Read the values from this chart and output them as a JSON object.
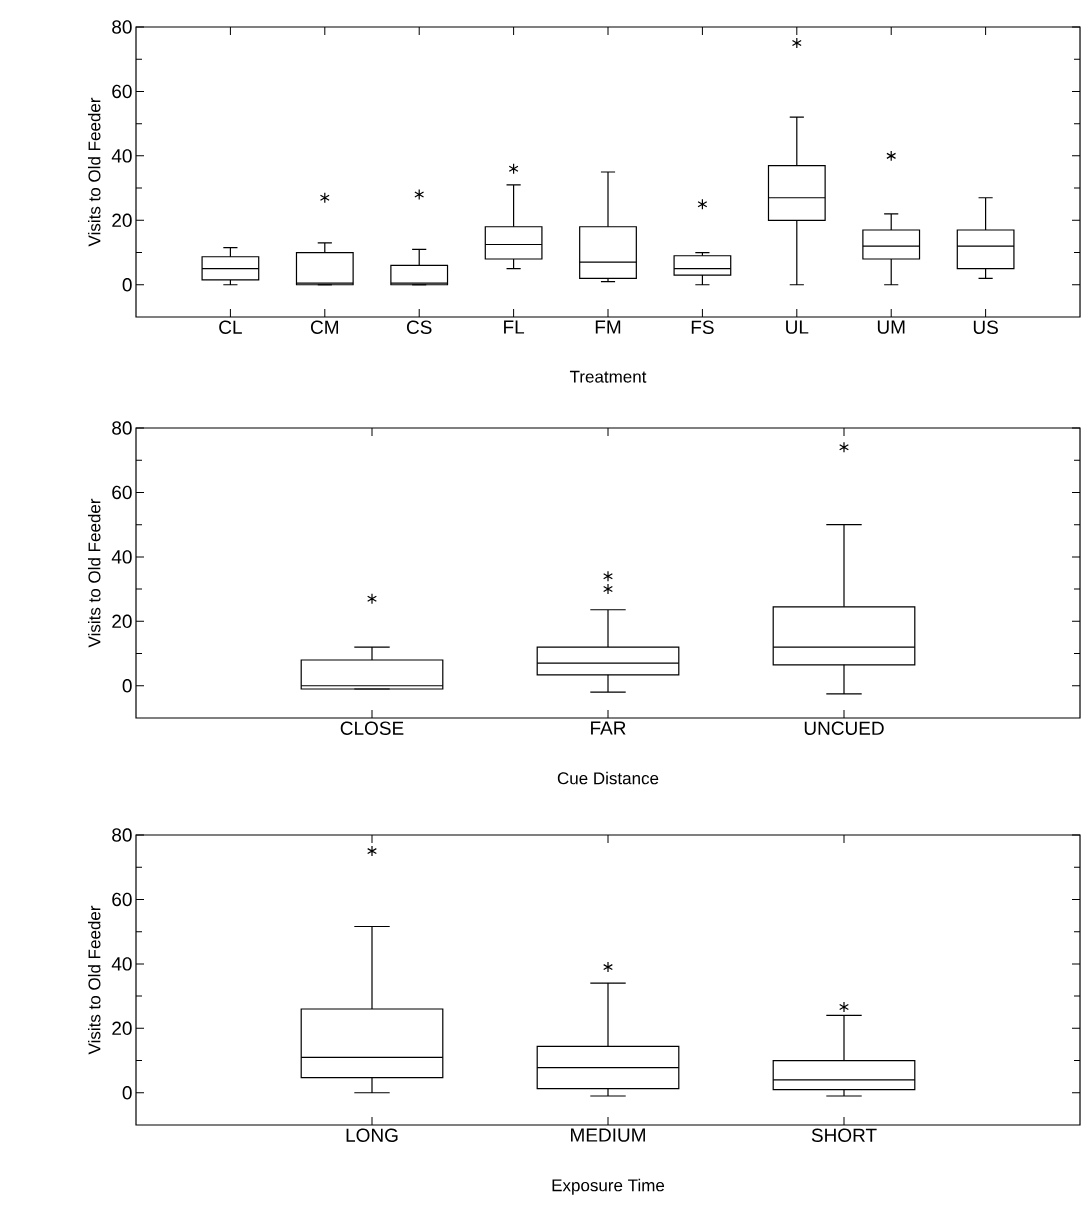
{
  "chart_data": [
    {
      "type": "box",
      "xlabel": "Treatment",
      "ylabel": "Visits to Old Feeder",
      "categories": [
        "CL",
        "CM",
        "CS",
        "FL",
        "FM",
        "FS",
        "UL",
        "UM",
        "US"
      ],
      "ylim": [
        -10,
        80
      ],
      "yticks": [
        0,
        20,
        40,
        60,
        80
      ],
      "marker": "star",
      "boxes": [
        {
          "low": 0,
          "q1": 1.5,
          "median": 5,
          "q3": 8.7,
          "high": 11.5
        },
        {
          "low": 0,
          "q1": 0,
          "median": 0.5,
          "q3": 10,
          "high": 13,
          "outliers": [
            27
          ]
        },
        {
          "low": 0,
          "q1": 0,
          "median": 0.5,
          "q3": 6,
          "high": 11,
          "outliers": [
            28
          ]
        },
        {
          "low": 5,
          "q1": 8,
          "median": 12.5,
          "q3": 18,
          "high": 31,
          "outliers": [
            36
          ]
        },
        {
          "low": 1,
          "q1": 2,
          "median": 7,
          "q3": 18,
          "high": 35
        },
        {
          "low": 0,
          "q1": 3,
          "median": 5,
          "q3": 9,
          "high": 10,
          "outliers": [
            25
          ]
        },
        {
          "low": 0,
          "q1": 20,
          "median": 27,
          "q3": 37,
          "high": 52,
          "outliers": [
            75
          ]
        },
        {
          "low": 0,
          "q1": 8,
          "median": 12,
          "q3": 17,
          "high": 22,
          "outliers": [
            40
          ]
        },
        {
          "low": 2,
          "q1": 5,
          "median": 12,
          "q3": 17,
          "high": 27
        }
      ]
    },
    {
      "type": "box",
      "xlabel": "Cue Distance",
      "ylabel": "Visits to Old Feeder",
      "categories": [
        "CLOSE",
        "FAR",
        "UNCUED"
      ],
      "ylim": [
        -10,
        80
      ],
      "yticks": [
        0,
        20,
        40,
        60,
        80
      ],
      "marker": "star",
      "boxes": [
        {
          "low": -1,
          "q1": -1,
          "median": 0,
          "q3": 8,
          "high": 12,
          "outliers": [
            27
          ]
        },
        {
          "low": -2,
          "q1": 3.4,
          "median": 7,
          "q3": 12,
          "high": 23.6,
          "outliers": [
            30,
            34
          ]
        },
        {
          "low": -2.5,
          "q1": 6.5,
          "median": 12,
          "q3": 24.5,
          "high": 50,
          "outliers": [
            74
          ]
        }
      ]
    },
    {
      "type": "box",
      "xlabel": "Exposure Time",
      "ylabel": "Visits to Old Feeder",
      "categories": [
        "LONG",
        "MEDIUM",
        "SHORT"
      ],
      "ylim": [
        -10,
        80
      ],
      "yticks": [
        0,
        20,
        40,
        60,
        80
      ],
      "marker": "star",
      "boxes": [
        {
          "low": 0,
          "q1": 4.7,
          "median": 11,
          "q3": 26,
          "high": 51.6,
          "outliers": [
            75
          ]
        },
        {
          "low": -1,
          "q1": 1.3,
          "median": 7.8,
          "q3": 14.4,
          "high": 34,
          "outliers": [
            39
          ]
        },
        {
          "low": -1,
          "q1": 1,
          "median": 4,
          "q3": 10,
          "high": 24,
          "outliers": [
            26.6
          ]
        }
      ]
    }
  ]
}
